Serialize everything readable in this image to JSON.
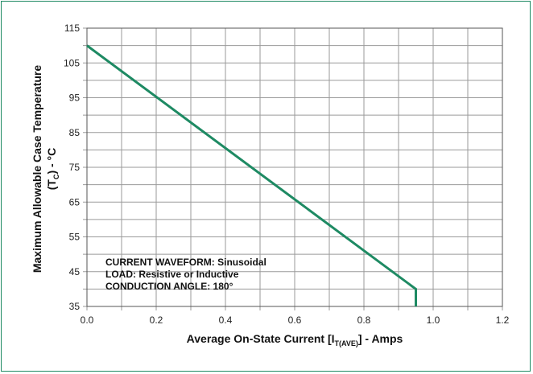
{
  "chart_data": {
    "type": "line",
    "title": "",
    "xlabel": {
      "main": "Average On-State Current [I",
      "subscript": "T(AVE)",
      "suffix": "] - Amps"
    },
    "ylabel": {
      "line1": "Maximum Allowable Case Temperature",
      "line2_prefix": "(T",
      "line2_subscript": "C",
      "line2_suffix": ") - °C"
    },
    "xlim": [
      0.0,
      1.2
    ],
    "ylim": [
      35,
      115
    ],
    "xticks": [
      "0.0",
      "0.2",
      "0.4",
      "0.6",
      "0.8",
      "1.0",
      "1.2"
    ],
    "yticks": [
      "35",
      "45",
      "55",
      "65",
      "75",
      "85",
      "95",
      "105",
      "115"
    ],
    "x_minor_step": 0.1,
    "y_minor_step": 5,
    "grid": true,
    "line_color": "#1e8a63",
    "series": [
      {
        "points": [
          {
            "x": 0.0,
            "y": 110
          },
          {
            "x": 0.95,
            "y": 40
          },
          {
            "x": 0.95,
            "y": 35
          }
        ]
      }
    ],
    "annotations": [
      "CURRENT WAVEFORM: Sinusoidal",
      "LOAD: Resistive or Inductive",
      "CONDUCTION ANGLE: 180°"
    ]
  }
}
